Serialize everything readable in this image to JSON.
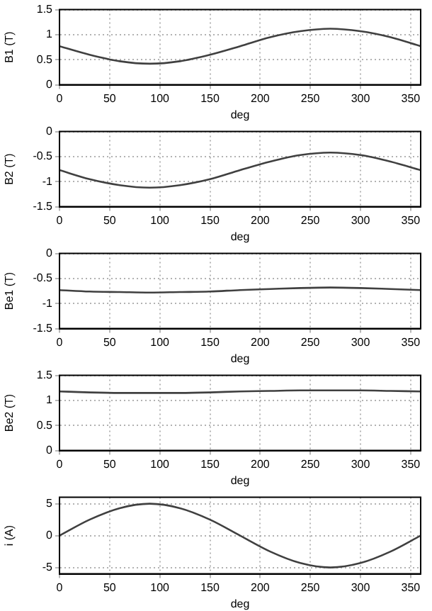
{
  "chart_data": [
    {
      "type": "line",
      "xlabel": "deg",
      "ylabel": "B1 (T)",
      "x": [
        0,
        30,
        60,
        90,
        120,
        150,
        180,
        210,
        240,
        270,
        300,
        330,
        360
      ],
      "series": [
        {
          "color": "#404040",
          "values": [
            0.77,
            0.6,
            0.47,
            0.42,
            0.47,
            0.6,
            0.77,
            0.95,
            1.07,
            1.12,
            1.07,
            0.95,
            0.77
          ]
        }
      ],
      "xlim": [
        0,
        360
      ],
      "xticks": [
        0,
        50,
        100,
        150,
        200,
        250,
        300,
        350
      ],
      "ylim": [
        0,
        1.5
      ],
      "yticks": [
        0,
        0.5,
        1,
        1.5
      ],
      "grid": true
    },
    {
      "type": "line",
      "xlabel": "deg",
      "ylabel": "B2 (T)",
      "x": [
        0,
        30,
        60,
        90,
        120,
        150,
        180,
        210,
        240,
        270,
        300,
        330,
        360
      ],
      "series": [
        {
          "color": "#404040",
          "values": [
            -0.77,
            -0.95,
            -1.07,
            -1.12,
            -1.07,
            -0.95,
            -0.77,
            -0.6,
            -0.47,
            -0.42,
            -0.47,
            -0.6,
            -0.77
          ]
        }
      ],
      "xlim": [
        0,
        360
      ],
      "xticks": [
        0,
        50,
        100,
        150,
        200,
        250,
        300,
        350
      ],
      "ylim": [
        -1.5,
        0
      ],
      "yticks": [
        -1.5,
        -1,
        -0.5,
        0
      ],
      "grid": true
    },
    {
      "type": "line",
      "xlabel": "deg",
      "ylabel": "Be1 (T)",
      "x": [
        0,
        30,
        60,
        90,
        120,
        150,
        180,
        210,
        240,
        270,
        300,
        330,
        360
      ],
      "series": [
        {
          "color": "#404040",
          "values": [
            -0.73,
            -0.76,
            -0.77,
            -0.78,
            -0.77,
            -0.76,
            -0.73,
            -0.71,
            -0.69,
            -0.68,
            -0.69,
            -0.71,
            -0.73
          ]
        }
      ],
      "xlim": [
        0,
        360
      ],
      "xticks": [
        0,
        50,
        100,
        150,
        200,
        250,
        300,
        350
      ],
      "ylim": [
        -1.5,
        0
      ],
      "yticks": [
        -1.5,
        -1,
        -0.5,
        0
      ],
      "grid": true
    },
    {
      "type": "line",
      "xlabel": "deg",
      "ylabel": "Be2 (T)",
      "x": [
        0,
        30,
        60,
        90,
        120,
        150,
        180,
        210,
        240,
        270,
        300,
        330,
        360
      ],
      "series": [
        {
          "color": "#404040",
          "values": [
            1.18,
            1.16,
            1.15,
            1.15,
            1.15,
            1.16,
            1.18,
            1.19,
            1.2,
            1.2,
            1.2,
            1.19,
            1.18
          ]
        }
      ],
      "xlim": [
        0,
        360
      ],
      "xticks": [
        0,
        50,
        100,
        150,
        200,
        250,
        300,
        350
      ],
      "ylim": [
        0,
        1.5
      ],
      "yticks": [
        0,
        0.5,
        1,
        1.5
      ],
      "grid": true
    },
    {
      "type": "line",
      "xlabel": "deg",
      "ylabel": "i (A)",
      "x": [
        0,
        30,
        60,
        90,
        120,
        150,
        180,
        210,
        240,
        270,
        300,
        330,
        360
      ],
      "series": [
        {
          "color": "#404040",
          "values": [
            0,
            2.5,
            4.3,
            5,
            4.3,
            2.5,
            0,
            -2.5,
            -4.3,
            -5,
            -4.3,
            -2.5,
            0
          ]
        }
      ],
      "xlim": [
        0,
        360
      ],
      "xticks": [
        0,
        50,
        100,
        150,
        200,
        250,
        300,
        350
      ],
      "ylim": [
        -6,
        6
      ],
      "yticks": [
        -5,
        0,
        5
      ],
      "grid": true
    }
  ]
}
